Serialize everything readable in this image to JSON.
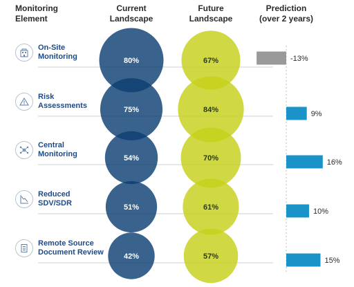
{
  "headers": {
    "element": "Monitoring\nElement",
    "current": "Current\nLandscape",
    "future": "Future\nLandscape",
    "prediction": "Prediction\n(over 2 years)"
  },
  "rows": [
    {
      "label": "On-Site\nMonitoring",
      "icon": "building-icon"
    },
    {
      "label": "Risk\nAssessments",
      "icon": "warning-icon"
    },
    {
      "label": "Central\nMonitoring",
      "icon": "network-icon"
    },
    {
      "label": "Reduced\nSDV/SDR",
      "icon": "chart-decline-icon"
    },
    {
      "label": "Remote Source\nDocument Review",
      "icon": "document-icon"
    }
  ],
  "colors": {
    "current": "#0d3f73",
    "future": "#c6d11a",
    "prediction_positive": "#1a93c8",
    "prediction_negative": "#9a9a9a",
    "label": "#1e4a86",
    "rule": "#c9d0d6"
  },
  "chart_data": {
    "type": "bubble",
    "categories": [
      "On-Site Monitoring",
      "Risk Assessments",
      "Central Monitoring",
      "Reduced SDV/SDR",
      "Remote Source Document Review"
    ],
    "series": [
      {
        "name": "Current Landscape",
        "values": [
          80,
          75,
          54,
          51,
          42
        ],
        "labels": [
          "80%",
          "75%",
          "54%",
          "51%",
          "42%"
        ]
      },
      {
        "name": "Future Landscape",
        "values": [
          67,
          84,
          70,
          61,
          57
        ],
        "labels": [
          "67%",
          "84%",
          "70%",
          "61%",
          "57%"
        ]
      },
      {
        "name": "Prediction (over 2 years)",
        "values": [
          -13,
          9,
          16,
          10,
          15
        ],
        "labels": [
          "-13%",
          "9%",
          "16%",
          "10%",
          "15%"
        ]
      }
    ]
  }
}
